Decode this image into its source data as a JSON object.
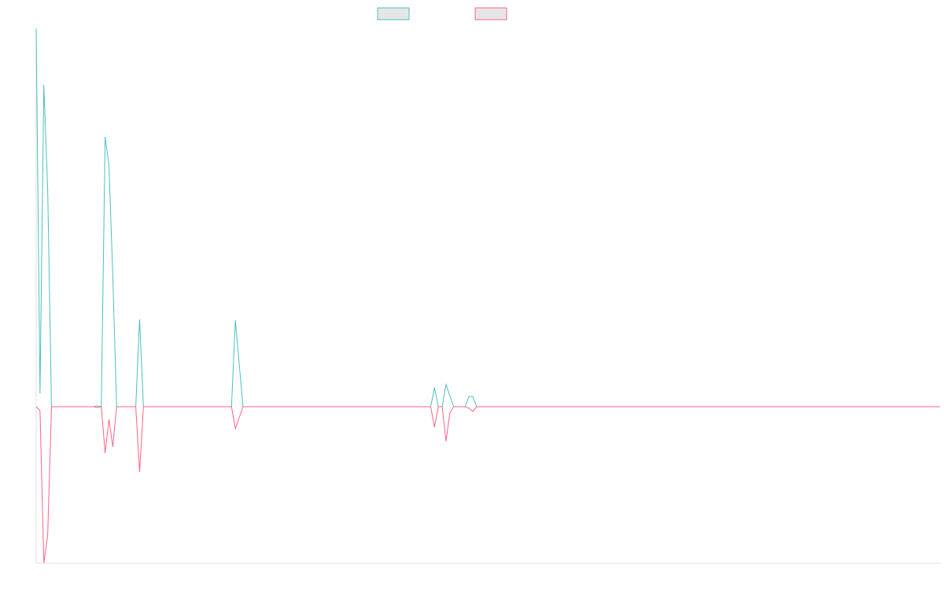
{
  "chart_data": {
    "type": "line",
    "ylim": [
      -199,
      481
    ],
    "series": [
      {
        "color": "#4bc0c0",
        "values": [
          481,
          17,
          409,
          277,
          0,
          0,
          0,
          0,
          0,
          0,
          0,
          0,
          0,
          0,
          0,
          0,
          1,
          0,
          343,
          307,
          167,
          0,
          0,
          0,
          0,
          0,
          0,
          111,
          0,
          0,
          0,
          0,
          0,
          0,
          0,
          0,
          0,
          0,
          0,
          0,
          0,
          0,
          0,
          0,
          0,
          0,
          0,
          0,
          0,
          0,
          0,
          0,
          110,
          55,
          0,
          0,
          0,
          0,
          0,
          0,
          0,
          0,
          0,
          0,
          0,
          0,
          0,
          0,
          0,
          0,
          0,
          0,
          0,
          0,
          0,
          0,
          0,
          0,
          0,
          0,
          0,
          0,
          0,
          0,
          0,
          0,
          0,
          0,
          0,
          0,
          0,
          0,
          0,
          0,
          0,
          0,
          0,
          0,
          0,
          0,
          0,
          0,
          0,
          0,
          24,
          0,
          0,
          28,
          14,
          0,
          0,
          0,
          0,
          13,
          13,
          0,
          0,
          0,
          0,
          0,
          0,
          0,
          0,
          0,
          0,
          0,
          0,
          0,
          0,
          0,
          0,
          0,
          0,
          0,
          0,
          0,
          0,
          0,
          0,
          0,
          0,
          0,
          0,
          0,
          0,
          0,
          0,
          0,
          0,
          0,
          0,
          0,
          0,
          0,
          0,
          0,
          0,
          0,
          0,
          0,
          0,
          0,
          0,
          0,
          0,
          0,
          0,
          0,
          0,
          0,
          0,
          0,
          0,
          0,
          0,
          0,
          0,
          0,
          0,
          0,
          0,
          0,
          0,
          0,
          0,
          0,
          0,
          0,
          0,
          0,
          0,
          0,
          0,
          0,
          0,
          0,
          0,
          0,
          0,
          0,
          0,
          0,
          0,
          0,
          0,
          0,
          0,
          0,
          0,
          0,
          0,
          0,
          0,
          0,
          0,
          0,
          0,
          0,
          0,
          0,
          0,
          0,
          0,
          0,
          0,
          0,
          0,
          0,
          0,
          0,
          0,
          0,
          0,
          0,
          0,
          0,
          0
        ]
      },
      {
        "color": "#ff6384",
        "values": [
          0,
          -5,
          -199,
          -163,
          0,
          0,
          0,
          0,
          0,
          0,
          0,
          0,
          0,
          0,
          0,
          0,
          -1,
          0,
          -59,
          -16,
          -51,
          0,
          0,
          0,
          0,
          0,
          0,
          -83,
          0,
          0,
          0,
          0,
          0,
          0,
          0,
          0,
          0,
          0,
          0,
          0,
          0,
          0,
          0,
          0,
          0,
          0,
          0,
          0,
          0,
          0,
          0,
          0,
          -28,
          -14,
          0,
          0,
          0,
          0,
          0,
          0,
          0,
          0,
          0,
          0,
          0,
          0,
          0,
          0,
          0,
          0,
          0,
          0,
          0,
          0,
          0,
          0,
          0,
          0,
          0,
          0,
          0,
          0,
          0,
          0,
          0,
          0,
          0,
          0,
          0,
          0,
          0,
          0,
          0,
          0,
          0,
          0,
          0,
          0,
          0,
          0,
          0,
          0,
          0,
          0,
          -26,
          0,
          0,
          -44,
          -8,
          0,
          0,
          0,
          0,
          -2,
          -6,
          0,
          0,
          0,
          0,
          0,
          0,
          0,
          0,
          0,
          0,
          0,
          0,
          0,
          0,
          0,
          0,
          0,
          0,
          0,
          0,
          0,
          0,
          0,
          0,
          0,
          0,
          0,
          0,
          0,
          0,
          0,
          0,
          0,
          0,
          0,
          0,
          0,
          0,
          0,
          0,
          0,
          0,
          0,
          0,
          0,
          0,
          0,
          0,
          0,
          0,
          0,
          0,
          0,
          0,
          0,
          0,
          0,
          0,
          0,
          0,
          0,
          0,
          0,
          0,
          0,
          0,
          0,
          0,
          0,
          0,
          0,
          0,
          0,
          0,
          0,
          0,
          0,
          0,
          0,
          0,
          0,
          0,
          0,
          0,
          0,
          0,
          0,
          0,
          0,
          0,
          0,
          0,
          0,
          0,
          0,
          0,
          0,
          0,
          0,
          0,
          0,
          0,
          0,
          0,
          0,
          0,
          0,
          0,
          0,
          0,
          0,
          0,
          0,
          0,
          0,
          0,
          0,
          0,
          0,
          0,
          0,
          0
        ]
      }
    ]
  }
}
